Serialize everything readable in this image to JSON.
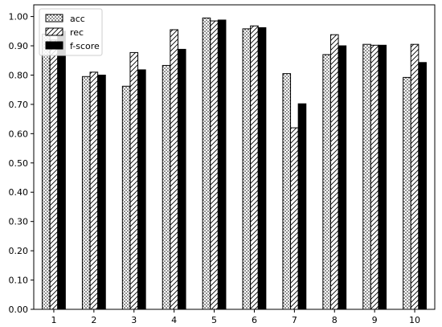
{
  "chart_data": {
    "type": "bar",
    "categories": [
      "1",
      "2",
      "3",
      "4",
      "5",
      "6",
      "7",
      "8",
      "9",
      "10"
    ],
    "series": [
      {
        "name": "acc",
        "pattern": "dots",
        "values": [
          0.94,
          0.795,
          0.762,
          0.833,
          0.995,
          0.958,
          0.805,
          0.87,
          0.905,
          0.792
        ]
      },
      {
        "name": "rec",
        "pattern": "hatch",
        "values": [
          0.92,
          0.81,
          0.877,
          0.955,
          0.985,
          0.968,
          0.62,
          0.938,
          0.902,
          0.905
        ]
      },
      {
        "name": "f-score",
        "pattern": "solid",
        "values": [
          0.95,
          0.8,
          0.818,
          0.888,
          0.988,
          0.962,
          0.702,
          0.9,
          0.902,
          0.843
        ]
      }
    ],
    "yticks": [
      "0.00",
      "0.10",
      "0.20",
      "0.30",
      "0.40",
      "0.50",
      "0.60",
      "0.70",
      "0.80",
      "0.90",
      "1.00"
    ],
    "ylim": [
      0,
      1.04
    ],
    "grid": false,
    "legend_position": "top-left",
    "title": "",
    "xlabel": "",
    "ylabel": ""
  }
}
